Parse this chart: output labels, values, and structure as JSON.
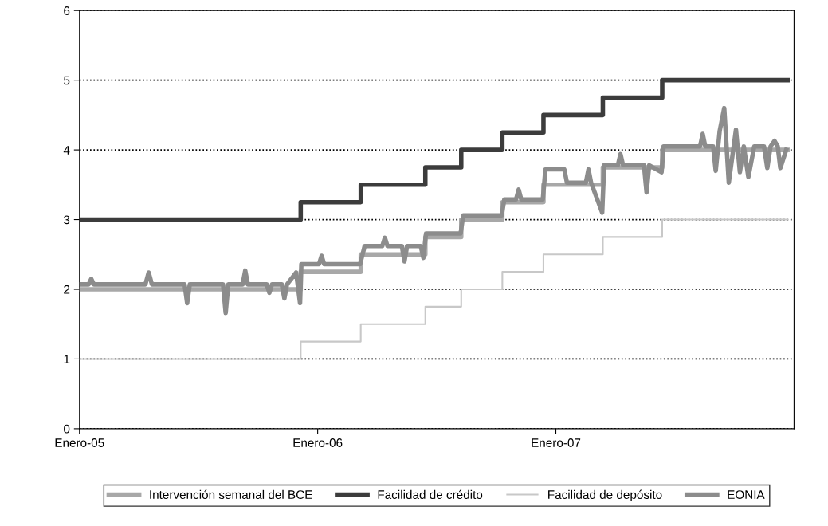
{
  "chart_data": {
    "type": "step",
    "xlim": [
      "2005-01-01",
      "2008-01-01"
    ],
    "xticks": [
      {
        "value": "2005-01-01",
        "label": "Enero-05"
      },
      {
        "value": "2006-01-01",
        "label": "Enero-06"
      },
      {
        "value": "2007-01-01",
        "label": "Enero-07"
      }
    ],
    "ylim": [
      0,
      6
    ],
    "yticks": [
      0,
      1,
      2,
      3,
      4,
      5,
      6
    ],
    "grid": "y",
    "legend": "bottom",
    "series": [
      {
        "name": "Intervención semanal del BCE",
        "color": "#a8a8a8",
        "x": [
          "2005-01-01",
          "2005-12-06",
          "2006-03-08",
          "2006-06-15",
          "2006-08-09",
          "2006-10-11",
          "2006-12-13",
          "2007-03-14",
          "2007-06-13",
          "2007-12-22"
        ],
        "values": [
          2.0,
          2.25,
          2.5,
          2.75,
          3.0,
          3.25,
          3.5,
          3.75,
          4.0,
          4.0
        ]
      },
      {
        "name": "Facilidad de crédito",
        "color": "#3c3c3c",
        "x": [
          "2005-01-01",
          "2005-12-06",
          "2006-03-08",
          "2006-06-15",
          "2006-08-09",
          "2006-10-11",
          "2006-12-13",
          "2007-03-14",
          "2007-06-13",
          "2007-12-22"
        ],
        "values": [
          3.0,
          3.25,
          3.5,
          3.75,
          4.0,
          4.25,
          4.5,
          4.75,
          5.0,
          5.0
        ]
      },
      {
        "name": "Facilidad de depósito",
        "color": "#c8c8c8",
        "x": [
          "2005-01-01",
          "2005-12-06",
          "2006-03-08",
          "2006-06-15",
          "2006-08-09",
          "2006-10-11",
          "2006-12-13",
          "2007-03-14",
          "2007-06-13",
          "2007-12-22"
        ],
        "values": [
          1.0,
          1.25,
          1.5,
          1.75,
          2.0,
          2.25,
          2.5,
          2.75,
          3.0,
          3.0
        ]
      },
      {
        "name": "EONIA",
        "type": "line",
        "color": "#8c8c8c",
        "x": [
          "2005-01-01",
          "2005-01-15",
          "2005-01-19",
          "2005-01-23",
          "2005-04-12",
          "2005-04-17",
          "2005-04-22",
          "2005-06-11",
          "2005-06-15",
          "2005-06-19",
          "2005-08-09",
          "2005-08-13",
          "2005-08-17",
          "2005-09-08",
          "2005-09-12",
          "2005-09-16",
          "2005-10-15",
          "2005-10-19",
          "2005-10-23",
          "2005-11-07",
          "2005-11-11",
          "2005-11-15",
          "2005-11-29",
          "2005-12-05",
          "2005-12-07",
          "2006-01-03",
          "2006-01-07",
          "2006-01-11",
          "2006-03-07",
          "2006-03-14",
          "2006-04-10",
          "2006-04-14",
          "2006-04-18",
          "2006-05-10",
          "2006-05-14",
          "2006-05-18",
          "2006-06-08",
          "2006-06-12",
          "2006-06-16",
          "2006-08-08",
          "2006-08-12",
          "2006-10-10",
          "2006-10-14",
          "2006-11-01",
          "2006-11-05",
          "2006-11-09",
          "2006-12-12",
          "2006-12-16",
          "2007-01-14",
          "2007-01-18",
          "2007-02-16",
          "2007-02-20",
          "2007-02-24",
          "2007-03-13",
          "2007-03-16",
          "2007-04-06",
          "2007-04-10",
          "2007-04-14",
          "2007-05-16",
          "2007-05-20",
          "2007-05-24",
          "2007-06-12",
          "2007-06-15",
          "2007-08-10",
          "2007-08-14",
          "2007-08-18",
          "2007-08-30",
          "2007-09-03",
          "2007-09-09",
          "2007-09-16",
          "2007-09-23",
          "2007-10-04",
          "2007-10-10",
          "2007-10-16",
          "2007-10-23",
          "2007-11-01",
          "2007-11-16",
          "2007-11-21",
          "2007-11-26",
          "2007-12-02",
          "2007-12-07",
          "2007-12-11",
          "2007-12-20"
        ],
        "values": [
          2.07,
          2.07,
          2.15,
          2.07,
          2.07,
          2.24,
          2.07,
          2.07,
          1.8,
          2.07,
          2.07,
          1.66,
          2.07,
          2.07,
          2.27,
          2.07,
          2.07,
          1.95,
          2.07,
          2.07,
          1.87,
          2.07,
          2.24,
          1.8,
          2.36,
          2.36,
          2.48,
          2.36,
          2.36,
          2.62,
          2.62,
          2.74,
          2.62,
          2.62,
          2.4,
          2.62,
          2.62,
          2.45,
          2.8,
          2.8,
          3.06,
          3.06,
          3.29,
          3.29,
          3.43,
          3.29,
          3.29,
          3.72,
          3.72,
          3.53,
          3.53,
          3.72,
          3.53,
          3.1,
          3.78,
          3.78,
          3.94,
          3.78,
          3.78,
          3.39,
          3.78,
          3.68,
          4.05,
          4.05,
          4.23,
          4.05,
          4.05,
          3.7,
          4.27,
          4.6,
          3.53,
          4.29,
          3.68,
          4.05,
          3.61,
          4.05,
          4.05,
          3.74,
          4.05,
          4.13,
          4.05,
          3.74,
          4.0
        ]
      }
    ]
  }
}
